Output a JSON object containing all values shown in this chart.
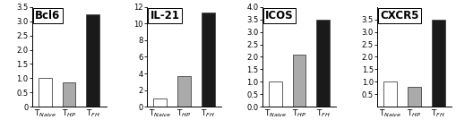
{
  "charts": [
    {
      "title": "Bcl6",
      "values": [
        1.0,
        0.87,
        3.25
      ],
      "ylim": [
        0,
        3.5
      ],
      "yticks": [
        0.0,
        0.5,
        1.0,
        1.5,
        2.0,
        2.5,
        3.0,
        3.5
      ],
      "yticklabels": [
        "0",
        "0.5",
        "1.0",
        "1.5",
        "2.0",
        "2.5",
        "3.0",
        "3.5"
      ]
    },
    {
      "title": "IL-21",
      "values": [
        1.0,
        3.7,
        11.3
      ],
      "ylim": [
        0,
        12
      ],
      "yticks": [
        0,
        2,
        4,
        6,
        8,
        10,
        12
      ],
      "yticklabels": [
        "0",
        "2",
        "4",
        "6",
        "8",
        "10",
        "12"
      ]
    },
    {
      "title": "ICOS",
      "values": [
        1.0,
        2.1,
        3.5
      ],
      "ylim": [
        0,
        4.0
      ],
      "yticks": [
        0.0,
        0.5,
        1.0,
        1.5,
        2.0,
        2.5,
        3.0,
        3.5,
        4.0
      ],
      "yticklabels": [
        "0.0",
        "0.5",
        "1.0",
        "1.5",
        "2.0",
        "2.5",
        "3.0",
        "3.5",
        "4.0"
      ]
    },
    {
      "title": "CXCR5",
      "values": [
        1.0,
        0.8,
        3.5
      ],
      "ylim": [
        0,
        4
      ],
      "yticks": [
        0.5,
        1.0,
        1.5,
        2.0,
        2.5,
        3.0,
        3.5
      ],
      "yticklabels": [
        "0.5",
        "1.0",
        "1.5",
        "2.0",
        "2.5",
        "3.0",
        "3.5"
      ]
    }
  ],
  "bar_colors": [
    "white",
    "#aaaaaa",
    "#1a1a1a"
  ],
  "bar_edgecolor": "#444444",
  "bar_linewidth": 0.6,
  "bar_width": 0.55,
  "xlabels": [
    "T$_{Naive}$",
    "T$_{HP}$",
    "T$_{FH}$"
  ],
  "title_fontsize": 8.5,
  "tick_fontsize": 6,
  "label_fontsize": 6.5,
  "background_color": "#ffffff"
}
